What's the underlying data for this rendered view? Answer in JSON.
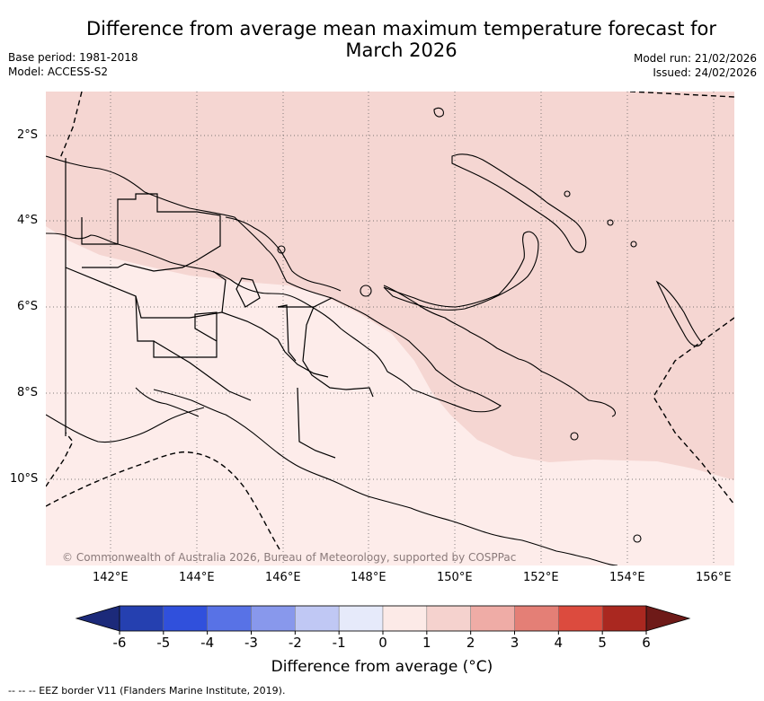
{
  "title_line1": "Difference from average mean maximum temperature forecast for",
  "title_line2": "March 2026",
  "base_period": "Base period: 1981-2018",
  "model": "Model: ACCESS-S2",
  "model_run": "Model run: 21/02/2026",
  "issued": "Issued: 24/02/2026",
  "credit": "© Commonwealth of Australia 2026, Bureau of Meteorology, supported by COSPPac",
  "lat_labels": [
    "2°S",
    "4°S",
    "6°S",
    "8°S",
    "10°S"
  ],
  "lon_labels": [
    "142°E",
    "144°E",
    "146°E",
    "148°E",
    "150°E",
    "152°E",
    "154°E",
    "156°E"
  ],
  "colorbar": {
    "ticks": [
      "-6",
      "-5",
      "-4",
      "-3",
      "-2",
      "-1",
      "0",
      "1",
      "2",
      "3",
      "4",
      "5",
      "6"
    ],
    "label": "Difference from average (°C)",
    "colors": [
      "#2540b0",
      "#3050dc",
      "#5872e6",
      "#8898ec",
      "#c0c8f4",
      "#e6eafa",
      "#fceae7",
      "#f5d2ce",
      "#efaca6",
      "#e47f76",
      "#dc4b3e",
      "#aa2820"
    ],
    "under_color": "#1c2a7a",
    "over_color": "#6e1a18"
  },
  "footer": "--  --  -- EEZ border V11 (Flanders Marine Institute, 2019).",
  "colors": {
    "anomaly_1_2": "#f5d6d2",
    "anomaly_0_1": "#fdecea"
  }
}
